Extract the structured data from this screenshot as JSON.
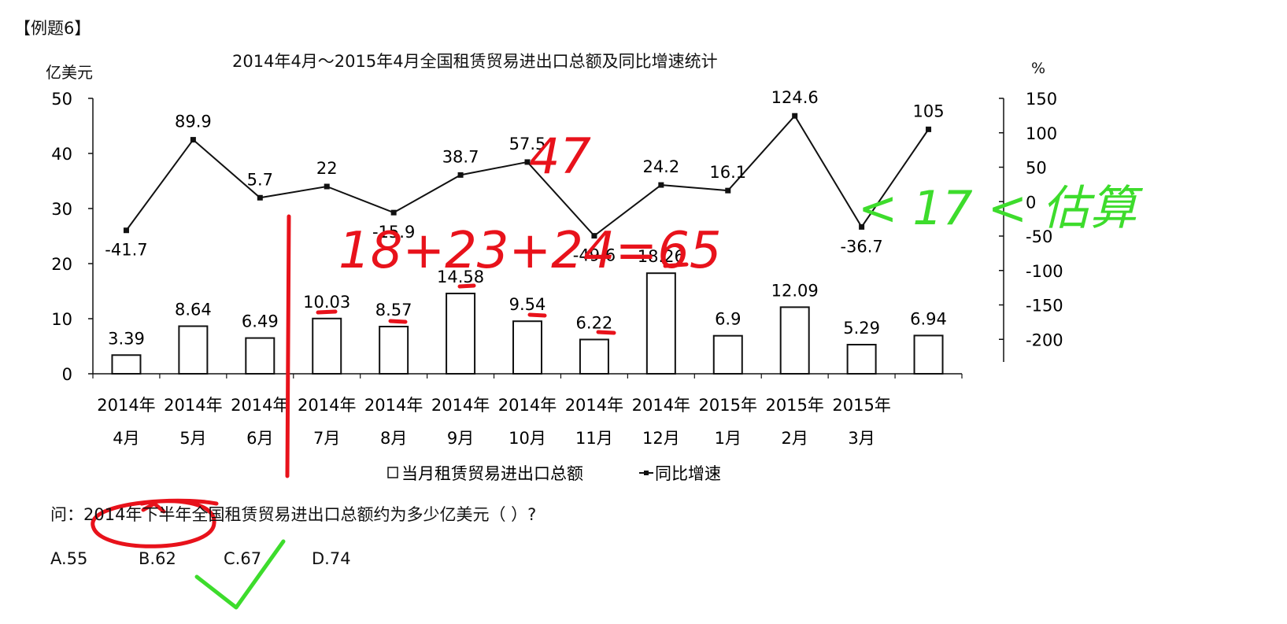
{
  "example_tag": "【例题6】",
  "question": {
    "prefix": "问：",
    "text": "2014年下半年全国租赁贸易进出口总额约为多少亿美元（  ）?",
    "options": [
      "A.55",
      "B.62",
      "C.67",
      "D.74"
    ]
  },
  "chart_data": {
    "type": "bar+line",
    "title": "2014年4月～2015年4月全国租赁贸易进出口总额及同比增速统计",
    "left_axis": {
      "unit": "亿美元",
      "ticks": [
        0,
        10,
        20,
        30,
        40,
        50
      ],
      "ylim": [
        0,
        50
      ]
    },
    "right_axis": {
      "unit": "%",
      "ticks": [
        -200,
        -150,
        -100,
        -50,
        0,
        50,
        100,
        150
      ],
      "ylim": [
        -250,
        150
      ]
    },
    "categories": [
      [
        "2014年",
        "4月"
      ],
      [
        "2014年",
        "5月"
      ],
      [
        "2014年",
        "6月"
      ],
      [
        "2014年",
        "7月"
      ],
      [
        "2014年",
        "8月"
      ],
      [
        "2014年",
        "9月"
      ],
      [
        "2014年",
        "10月"
      ],
      [
        "2014年",
        "11月"
      ],
      [
        "2014年",
        "12月"
      ],
      [
        "2015年",
        "1月"
      ],
      [
        "2015年",
        "2月"
      ],
      [
        "2015年",
        "3月"
      ],
      [
        "",
        ""
      ]
    ],
    "series": [
      {
        "name": "当月租赁贸易进出口总额",
        "kind": "bar",
        "axis": "left",
        "values": [
          3.39,
          8.64,
          6.49,
          10.03,
          8.57,
          14.58,
          9.54,
          6.22,
          18.26,
          6.9,
          12.09,
          5.29,
          6.94
        ],
        "labels": [
          "3.39",
          "8.64",
          "6.49",
          "10.03",
          "8.57",
          "14.58",
          "9.54",
          "6.22",
          "18.26",
          "6.9",
          "12.09",
          "5.29",
          "6.94"
        ]
      },
      {
        "name": "同比增速",
        "kind": "line",
        "axis": "right",
        "values": [
          -41.7,
          89.9,
          5.7,
          22,
          -15.9,
          38.7,
          57.5,
          -49.6,
          24.2,
          16.1,
          124.6,
          -36.7,
          105
        ],
        "labels": [
          "-41.7",
          "89.9",
          "5.7",
          "22",
          "-15.9",
          "38.7",
          "57.5",
          "-49.6",
          "24.2",
          "16.1",
          "124.6",
          "-36.7",
          "105"
        ]
      }
    ],
    "legend": [
      "当月租赁贸易进出口总额",
      "同比增速"
    ],
    "legend_position": "bottom",
    "grid": false
  },
  "handwriting": {
    "red_calc": "18+23+24=65",
    "red_note": "47",
    "green_note": "< 17 < 估算"
  },
  "colors": {
    "red_ink": "#e8121b",
    "green_ink": "#3ddc2c",
    "chart_ink": "#111111"
  }
}
